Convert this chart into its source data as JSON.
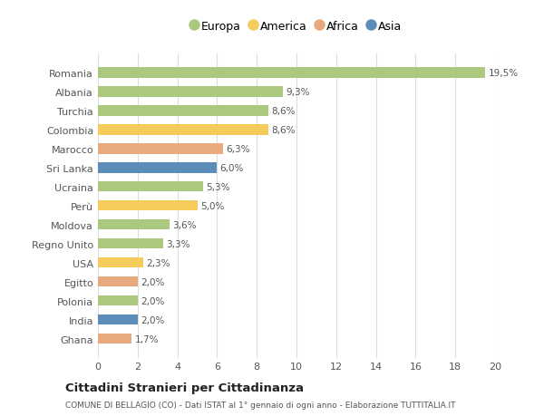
{
  "categories": [
    "Romania",
    "Albania",
    "Turchia",
    "Colombia",
    "Marocco",
    "Sri Lanka",
    "Ucraina",
    "Perù",
    "Moldova",
    "Regno Unito",
    "USA",
    "Egitto",
    "Polonia",
    "India",
    "Ghana"
  ],
  "values": [
    19.5,
    9.3,
    8.6,
    8.6,
    6.3,
    6.0,
    5.3,
    5.0,
    3.6,
    3.3,
    2.3,
    2.0,
    2.0,
    2.0,
    1.7
  ],
  "labels": [
    "19,5%",
    "9,3%",
    "8,6%",
    "8,6%",
    "6,3%",
    "6,0%",
    "5,3%",
    "5,0%",
    "3,6%",
    "3,3%",
    "2,3%",
    "2,0%",
    "2,0%",
    "2,0%",
    "1,7%"
  ],
  "continents": [
    "Europa",
    "Europa",
    "Europa",
    "America",
    "Africa",
    "Asia",
    "Europa",
    "America",
    "Europa",
    "Europa",
    "America",
    "Africa",
    "Europa",
    "Asia",
    "Africa"
  ],
  "continent_colors": {
    "Europa": "#aac97e",
    "America": "#f5cb5c",
    "Africa": "#e8a97e",
    "Asia": "#5b8db8"
  },
  "legend_order": [
    "Europa",
    "America",
    "Africa",
    "Asia"
  ],
  "title": "Cittadini Stranieri per Cittadinanza",
  "subtitle": "COMUNE DI BELLAGIO (CO) - Dati ISTAT al 1° gennaio di ogni anno - Elaborazione TUTTITALIA.IT",
  "xlim": [
    0,
    20
  ],
  "xticks": [
    0,
    2,
    4,
    6,
    8,
    10,
    12,
    14,
    16,
    18,
    20
  ],
  "background_color": "#ffffff",
  "grid_color": "#dddddd"
}
